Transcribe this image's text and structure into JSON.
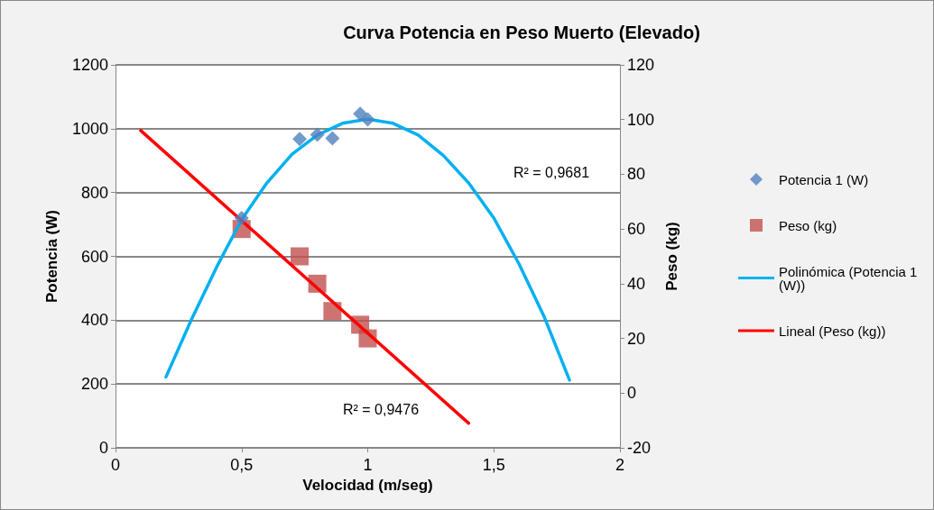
{
  "chart_data": {
    "type": "scatter",
    "title": "Curva Potencia en Peso Muerto (Elevado)",
    "xlabel": "Velocidad (m/seg)",
    "ylabel": "Potencia (W)",
    "y2label": "Peso (kg)",
    "xlim": [
      0,
      2
    ],
    "xticks": [
      0,
      {
        "value": 0.5,
        "label": "0,5"
      },
      1,
      {
        "value": 1.5,
        "label": "1,5"
      },
      2
    ],
    "ylim": [
      0,
      1200
    ],
    "yticks": [
      0,
      200,
      400,
      600,
      800,
      1000,
      1200
    ],
    "y2lim": [
      -20,
      120
    ],
    "y2ticks": [
      -20,
      0,
      20,
      40,
      60,
      80,
      100,
      120
    ],
    "grid": "y",
    "legend": "right",
    "series": [
      {
        "name": "Potencia 1 (W)",
        "marker": "diamond",
        "color": "#4f81bd",
        "x": [
          0.5,
          0.73,
          0.8,
          0.86,
          0.97,
          1.0
        ],
        "values": [
          720,
          968,
          981,
          970,
          1047,
          1029
        ]
      },
      {
        "name": "Peso (kg)",
        "marker": "square",
        "color": "#c0504d",
        "axis": "y2",
        "x": [
          0.5,
          0.73,
          0.8,
          0.86,
          0.97,
          1.0
        ],
        "values": [
          60,
          50,
          40,
          30,
          25,
          20
        ]
      },
      {
        "name": "Polinómica (Potencia 1 (W))",
        "type": "line",
        "marker": "none",
        "color": "#00b0f0",
        "x": [
          0.2,
          0.3,
          0.4,
          0.5,
          0.6,
          0.7,
          0.8,
          0.9,
          1.0,
          1.1,
          1.2,
          1.3,
          1.4,
          1.5,
          1.6,
          1.7,
          1.8
        ],
        "values": [
          222,
          400,
          565,
          715,
          830,
          920,
          980,
          1017,
          1030,
          1017,
          980,
          916,
          830,
          720,
          576,
          410,
          212
        ]
      },
      {
        "name": "Lineal (Peso (kg))",
        "type": "line",
        "marker": "none",
        "color": "#ff0000",
        "axis": "y2",
        "x": [
          0.1,
          1.4
        ],
        "values": [
          96,
          -11
        ]
      }
    ],
    "annotations": [
      "R² = 0,9681",
      "R² = 0,9476"
    ]
  }
}
